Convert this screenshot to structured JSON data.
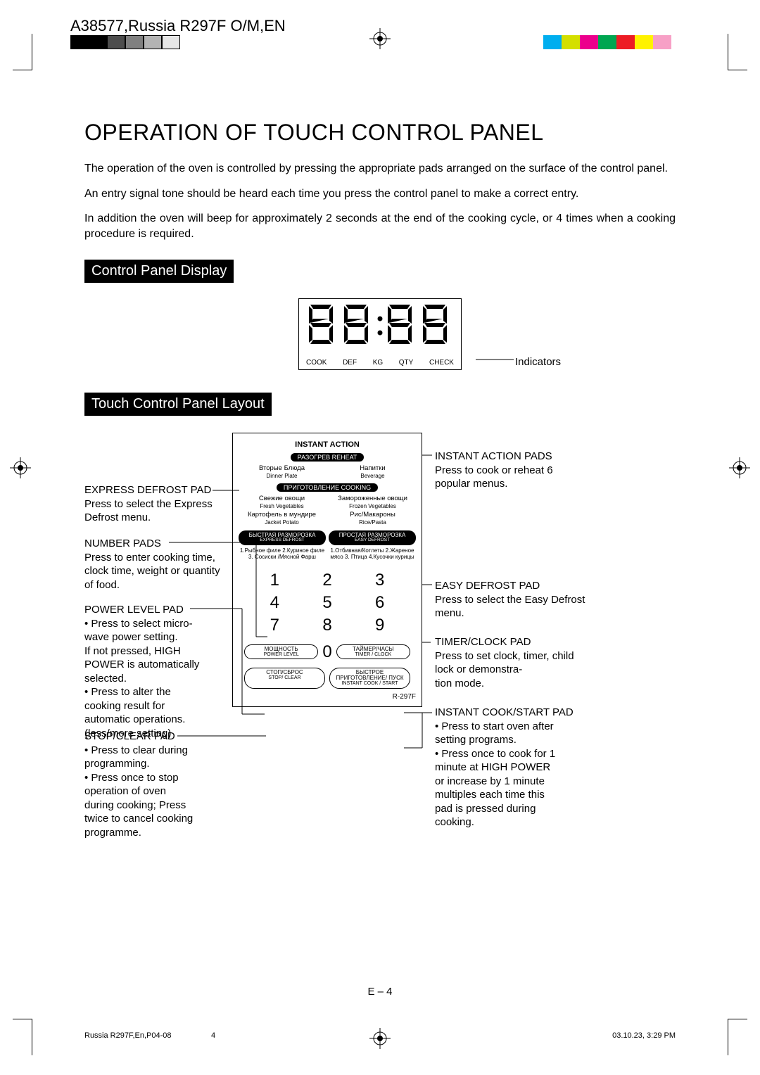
{
  "header": "A38577,Russia R297F O/M,EN",
  "title": "OPERATION OF TOUCH CONTROL PANEL",
  "para1": "The operation of the oven is controlled by pressing the appropriate pads arranged on the surface of the control panel.",
  "para2": "An entry signal tone should be heard each time you press the control panel to make a correct entry.",
  "para3": "In addition the oven will beep for approximately 2 seconds at the end of the cooking cycle, or 4 times when a cooking procedure is required.",
  "sub1": "Control Panel Display",
  "sub2": "Touch  Control Panel Layout",
  "indicators": [
    "COOK",
    "DEF",
    "KG",
    "QTY",
    "CHECK"
  ],
  "indicators_label": "Indicators",
  "color_swatches_left": [
    "#000000",
    "#000000",
    "#4d4d4d",
    "#808080",
    "#b3b3b3",
    "#e6e6e6"
  ],
  "color_swatches_right": [
    "#00aeef",
    "#d4df00",
    "#ec008c",
    "#00a651",
    "#ed1c24",
    "#fff200",
    "#f7a0c6",
    "#ffffff"
  ],
  "panel": {
    "instant_action_title": "INSTANT ACTION",
    "reheat_pill": "РАЗОГРЕВ  REHEAT",
    "reheat_items": [
      {
        "ru": "Вторые Блюда",
        "en": "Dinner Plate"
      },
      {
        "ru": "Напитки",
        "en": "Beverage"
      }
    ],
    "cooking_pill": "ПРИГОТОВЛЕНИЕ  COOKING",
    "cooking_items": [
      {
        "ru": "Свежие овощи",
        "en": "Fresh Vegetables"
      },
      {
        "ru": "Замороженные овощи",
        "en": "Frozen Vegetables"
      },
      {
        "ru": "Картофель в мундире",
        "en": "Jacket Potato"
      },
      {
        "ru": "Рис/Макароны",
        "en": "Rice/Pasta"
      }
    ],
    "express_defrost": {
      "ru": "БЫСТРАЯ РАЗМОРОЗКА",
      "en": "EXPRESS DEFROST"
    },
    "easy_defrost": {
      "ru": "ПРОСТАЯ РАЗМОРОЗКА",
      "en": "EASY DEFROST"
    },
    "express_list": "1.Рыбное филе 2.Куриное филе 3. Сосиски /Мясной Фарш",
    "easy_list": "1.Отбивная/Котлеты 2.Жареное мясо 3. Птица 4.Кусочки курицы",
    "numbers": [
      "1",
      "2",
      "3",
      "4",
      "5",
      "6",
      "7",
      "8",
      "9"
    ],
    "zero": "0",
    "power_btn": {
      "ru": "МОЩНОСТЬ",
      "en": "POWER LEVEL"
    },
    "timer_btn": {
      "ru": "ТАЙМЕР/ЧАСЫ",
      "en": "TIMER / CLOCK"
    },
    "stop_btn": {
      "ru": "СТОП/СБРОС",
      "en": "STOP/ CLEAR"
    },
    "start_btn": {
      "ru": "БЫСТРОЕ ПРИГОТОВЛЕНИЕ/ ПУСК",
      "en": "INSTANT COOK / START"
    },
    "model": "R-297F"
  },
  "callouts": {
    "express_defrost": {
      "hd": "EXPRESS DEFROST PAD",
      "body": "Press to select the Express Defrost menu."
    },
    "number_pads": {
      "hd": "NUMBER PADS",
      "body": "Press to enter cooking time, clock time, weight or quantity of food."
    },
    "power_level": {
      "hd": "POWER LEVEL PAD",
      "body": "• Press to select micro-\n  wave power setting.\n  If not pressed, HIGH\n  POWER is automatically\n  selected.\n• Press to alter the\n  cooking result for\n  automatic operations.\n  (less/more setting)"
    },
    "stop_clear": {
      "hd": "STOP/CLEAR PAD",
      "body": "• Press to clear during\n  programming.\n• Press once to stop\n  operation of oven\n  during cooking; Press\n  twice to cancel cooking\n  programme."
    },
    "instant_action": {
      "hd": "INSTANT ACTION PADS",
      "body": "Press to cook or reheat 6 popular menus."
    },
    "easy_defrost": {
      "hd": "EASY DEFROST PAD",
      "body": "Press to select the Easy Defrost menu."
    },
    "timer_clock": {
      "hd": "TIMER/CLOCK PAD",
      "body": "Press to set clock, timer, child lock or demonstra-\ntion mode."
    },
    "instant_cook": {
      "hd": "INSTANT COOK/START PAD",
      "body": "• Press to start oven after\n  setting programs.\n• Press once to cook for 1\n  minute at HIGH POWER\n  or increase by 1 minute\n  multiples each time this\n  pad is pressed during\n  cooking."
    }
  },
  "page_num": "E – 4",
  "footer_l": "Russia R297F,En,P04-08",
  "footer_c": "4",
  "footer_r": "03.10.23, 3:29 PM"
}
